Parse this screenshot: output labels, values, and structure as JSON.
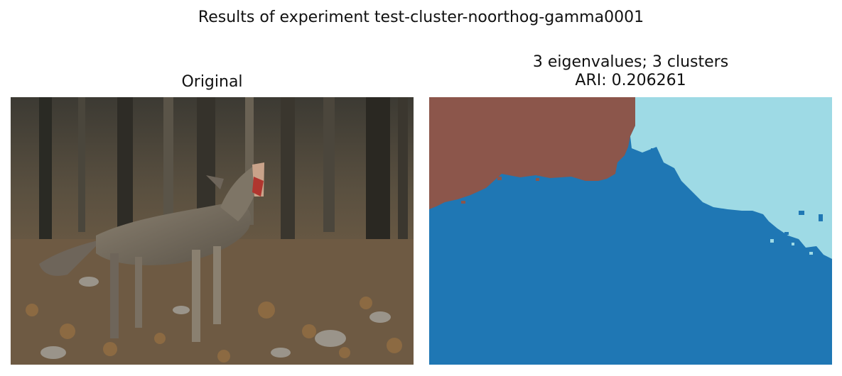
{
  "figure": {
    "suptitle": "Results of experiment test-cluster-noorthog-gamma0001"
  },
  "panels": {
    "original": {
      "title": "Original"
    },
    "segmentation": {
      "title_line1": "3 eigenvalues; 3 clusters",
      "title_line2": "ARI: 0.206261"
    }
  },
  "colors": {
    "cluster_brown": "#8c564b",
    "cluster_blue": "#1f77b4",
    "cluster_lightblue": "#9edae5"
  },
  "icons": {
    "original_image": "coyote-howling-photo",
    "segmentation_image": "cluster-segmentation-map"
  }
}
